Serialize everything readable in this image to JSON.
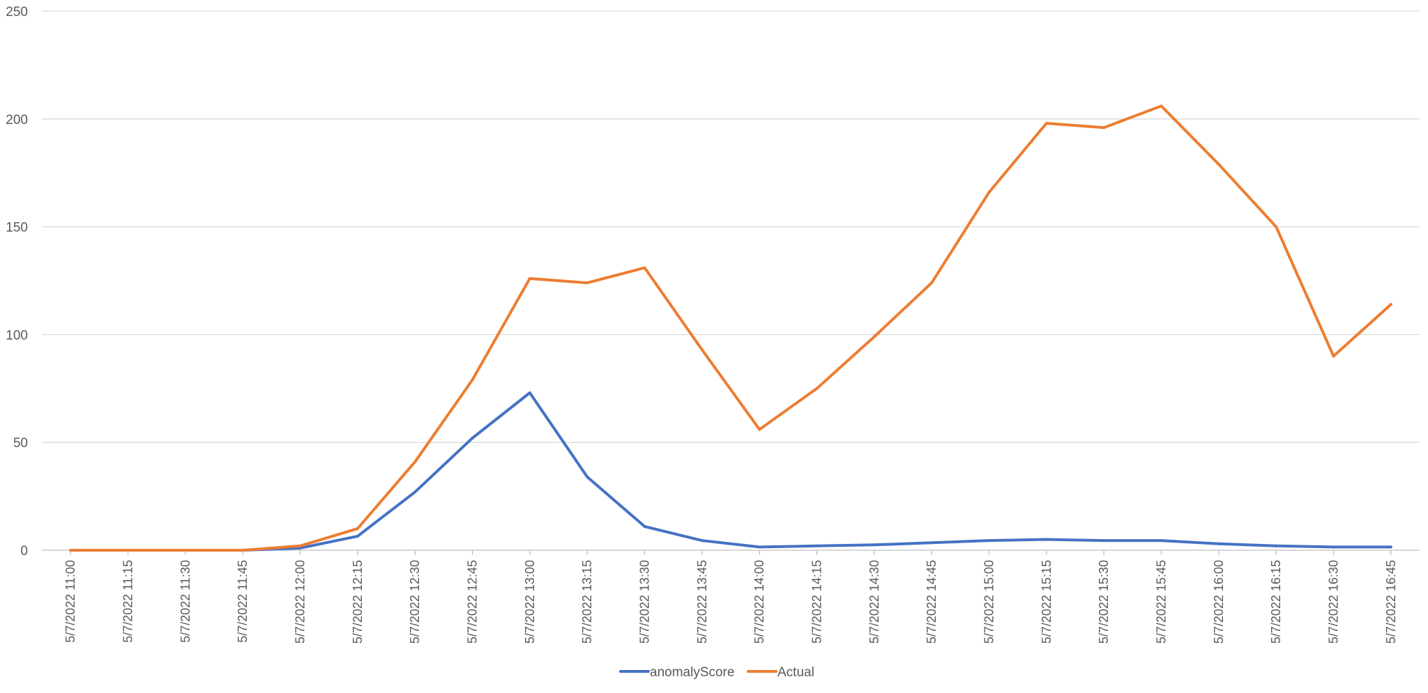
{
  "chart_data": {
    "type": "line",
    "title": "",
    "xlabel": "",
    "ylabel": "",
    "ylim": [
      0,
      250
    ],
    "yticks": [
      0,
      50,
      100,
      150,
      200,
      250
    ],
    "grid": true,
    "legend_position": "bottom",
    "categories": [
      "5/7/2022 11:00",
      "5/7/2022 11:15",
      "5/7/2022 11:30",
      "5/7/2022 11:45",
      "5/7/2022 12:00",
      "5/7/2022 12:15",
      "5/7/2022 12:30",
      "5/7/2022 12:45",
      "5/7/2022 13:00",
      "5/7/2022 13:15",
      "5/7/2022 13:30",
      "5/7/2022 13:45",
      "5/7/2022 14:00",
      "5/7/2022 14:15",
      "5/7/2022 14:30",
      "5/7/2022 14:45",
      "5/7/2022 15:00",
      "5/7/2022 15:15",
      "5/7/2022 15:30",
      "5/7/2022 15:45",
      "5/7/2022 16:00",
      "5/7/2022 16:15",
      "5/7/2022 16:30",
      "5/7/2022 16:45"
    ],
    "series": [
      {
        "name": "anomalyScore",
        "color": "#4472C4",
        "values": [
          0,
          0,
          0,
          0,
          1,
          6.5,
          27,
          52,
          73,
          34,
          11,
          4.5,
          1.5,
          2,
          2.5,
          3.5,
          4.5,
          5,
          4.5,
          4.5,
          3,
          2,
          1.5,
          1.5
        ]
      },
      {
        "name": "Actual",
        "color": "#ED7D31",
        "values": [
          0,
          0,
          0,
          0,
          2,
          10,
          41,
          79,
          126,
          124,
          131,
          93,
          56,
          75,
          99,
          124,
          166,
          198,
          196,
          206,
          179,
          150,
          90,
          114
        ]
      }
    ]
  }
}
